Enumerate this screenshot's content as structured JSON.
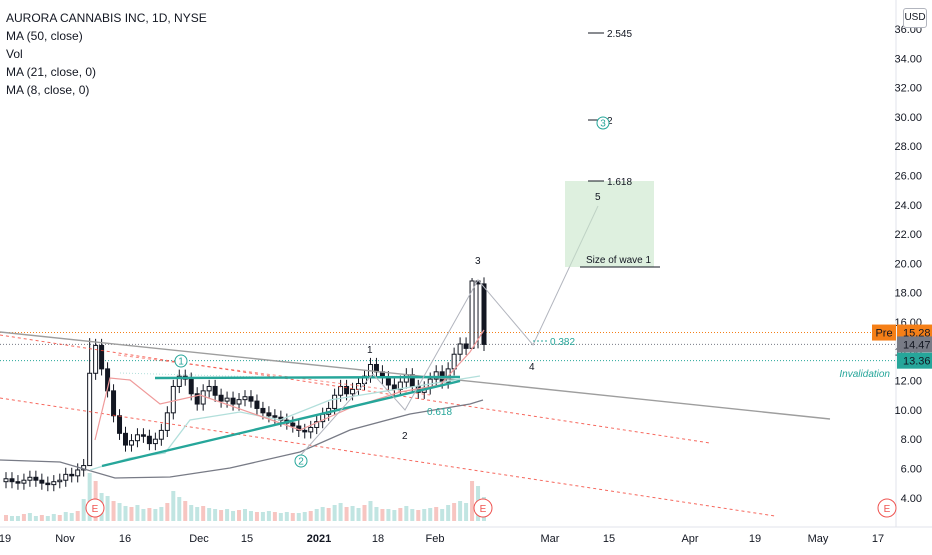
{
  "header": {
    "symbol_line": "AURORA CANNABIS INC, 1D, NYSE",
    "indicators": [
      "MA (50, close)",
      "Vol",
      "MA (21, close, 0)",
      "MA (8, close, 0)"
    ],
    "currency_button": "USD"
  },
  "price_axis": {
    "ticks": [
      "36.00",
      "34.00",
      "32.00",
      "30.00",
      "28.00",
      "26.00",
      "24.00",
      "22.00",
      "20.00",
      "18.00",
      "16.00",
      "14.00",
      "12.00",
      "10.00",
      "8.00",
      "6.00",
      "4.00"
    ],
    "tick_values": [
      36,
      34,
      32,
      30,
      28,
      26,
      24,
      22,
      20,
      18,
      16,
      14,
      12,
      10,
      8,
      6,
      4
    ],
    "badges": [
      {
        "name": "pre-market",
        "prefix": "Pre",
        "text": "15.28",
        "value": 15.28,
        "color": "#f57f17"
      },
      {
        "name": "last-price",
        "text": "14.47",
        "value": 14.47,
        "color": "#787b86"
      },
      {
        "name": "invalidation-level",
        "text": "13.36",
        "value": 13.36,
        "color": "#26a69a"
      }
    ]
  },
  "time_axis": {
    "labels": [
      "19",
      "Nov",
      "16",
      "Dec",
      "15",
      "2021",
      "18",
      "Feb",
      "Mar",
      "15",
      "Apr",
      "19",
      "May",
      "17"
    ],
    "bold": [
      "2021"
    ]
  },
  "annotations": {
    "wave_labels": [
      "1",
      "2",
      "3",
      "4",
      "5"
    ],
    "circled_labels": [
      "1",
      "2",
      "3"
    ],
    "fib_levels": [
      "2.545",
      "2",
      "1.618",
      "0.382",
      "0.618"
    ],
    "box_label": "Size of wave 1",
    "invalidation_label": "Invalidation",
    "earnings_marker": "E"
  },
  "colors": {
    "up_candle": "#ffffff",
    "down_candle": "#131722",
    "wedge": "#26a69a",
    "ma50": "#787b86",
    "ma21": "#b2dfdb",
    "ma8": "#ef9a9a",
    "channel": "#f44336",
    "target_box": "#c8e6c9",
    "earnings": "#ef5350"
  },
  "chart_data": {
    "type": "candlestick",
    "title": "AURORA CANNABIS INC, 1D, NYSE",
    "xlabel": "",
    "ylabel": "",
    "ylim": [
      3,
      36.5
    ],
    "grid": false,
    "series": [
      {
        "name": "AURORA CANNABIS INC",
        "approx_closes": [
          5.3,
          5.1,
          5.0,
          5.2,
          5.4,
          5.2,
          5.0,
          4.9,
          5.1,
          5.2,
          5.6,
          5.5,
          5.9,
          6.2,
          12.5,
          14.4,
          12.8,
          11.3,
          9.6,
          8.4,
          7.6,
          7.9,
          8.3,
          8.2,
          7.7,
          8.0,
          8.6,
          9.8,
          11.6,
          12.3,
          12.1,
          11.1,
          10.4,
          11.3,
          11.6,
          11.0,
          10.6,
          10.8,
          10.4,
          10.7,
          10.9,
          10.6,
          10.1,
          9.8,
          9.6,
          9.5,
          9.3,
          9.1,
          8.9,
          8.6,
          8.5,
          8.8,
          9.2,
          9.7,
          10.1,
          11.0,
          11.6,
          11.1,
          11.4,
          11.8,
          12.3,
          13.1,
          12.6,
          12.2,
          11.7,
          11.4,
          11.9,
          12.4,
          11.6,
          11.2,
          11.5,
          12.1,
          12.6,
          11.9,
          12.8,
          13.8,
          14.5,
          14.2,
          18.8,
          18.6,
          14.47
        ],
        "last_close": 14.47
      },
      {
        "name": "MA (50, close)",
        "approx_values": [
          6.0,
          6.0,
          6.1,
          6.2,
          7.1,
          7.9,
          8.4,
          9.3,
          10.1,
          10.9
        ]
      },
      {
        "name": "MA (21, close, 0)",
        "approx_values": [
          5.6,
          6.5,
          7.0,
          8.5,
          9.0,
          8.9,
          10.0,
          10.6,
          11.3,
          12.6
        ]
      },
      {
        "name": "MA (8, close, 0)",
        "approx_values": [
          6.5,
          10.6,
          10.4,
          8.8,
          9.4,
          11.6,
          11.5,
          14.6
        ]
      }
    ],
    "levels": [
      {
        "name": "Pre",
        "value": 15.28
      },
      {
        "name": "last",
        "value": 14.47
      },
      {
        "name": "Invalidation",
        "value": 13.36
      }
    ],
    "fib_targets": [
      {
        "label": "2.545",
        "value": 35.6
      },
      {
        "label": "2",
        "value": 29.7
      },
      {
        "label": "1.618",
        "value": 25.7
      },
      {
        "label": "0.382",
        "value": 14.8
      },
      {
        "label": "0.618",
        "value": 11.0
      }
    ],
    "projection_path": [
      {
        "date": "2021-02-10",
        "value": 18.8
      },
      {
        "date": "2021-02-22",
        "value": 14.7
      },
      {
        "date": "2021-03-12",
        "value": 23.6
      }
    ],
    "target_box": {
      "from": "2021-03-02",
      "to": "2021-03-24",
      "low": 19.8,
      "high": 25.7
    }
  }
}
